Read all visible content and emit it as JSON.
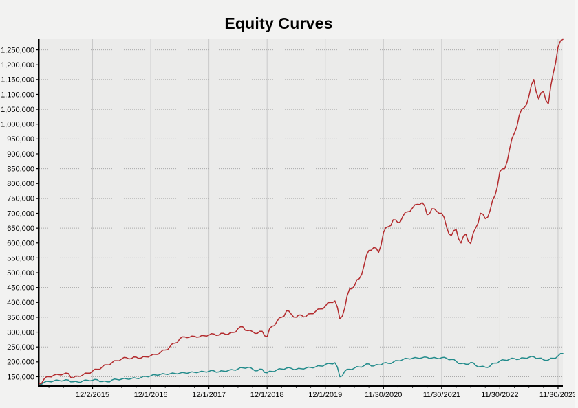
{
  "title": "Equity Curves",
  "colors": {
    "background": "#f2f2f1",
    "plot_background": "#ebebea",
    "vertical_gridline": "#c9c9c9",
    "horizontal_gridline": "#a9a9a9",
    "axis": "#000000",
    "tick_label": "#000000",
    "red_series": "#b32b2e",
    "teal_series": "#228b8b"
  },
  "chart_data": {
    "type": "line",
    "title": "Equity Curves",
    "grid": "on",
    "legend": "none",
    "x_axis": {
      "tick_labels": [
        "12/2/2015",
        "12/1/2016",
        "12/1/2017",
        "12/1/2018",
        "12/1/2019",
        "11/30/2020",
        "11/30/2021",
        "11/30/2022",
        "11/30/2023"
      ],
      "tick_indices": [
        11,
        23,
        35,
        47,
        59,
        71,
        83,
        95,
        107
      ],
      "minor_tick_every_points": 3,
      "points_span": 109
    },
    "y_axis": {
      "tick_min": 150000,
      "tick_max": 1250000,
      "tick_step": 50000,
      "minor_tick_step": 10000,
      "gridline_step": 100000,
      "value_at_plot_bottom": 121000,
      "value_at_plot_top": 1286000,
      "tick_label_format": "comma-separated"
    },
    "series": [
      {
        "name": "teal",
        "color": "#228b8b",
        "values": [
          125000,
          131000,
          134000,
          136000,
          138000,
          137000,
          139000,
          133000,
          132000,
          136000,
          138000,
          138000,
          140000,
          134000,
          133000,
          139000,
          141000,
          142000,
          143000,
          144000,
          145000,
          147000,
          151000,
          153000,
          156000,
          158000,
          159000,
          160000,
          161000,
          162000,
          163000,
          164000,
          165000,
          166000,
          167000,
          168000,
          170000,
          166000,
          169000,
          171000,
          173000,
          176000,
          180000,
          181000,
          176000,
          170000,
          175000,
          163000,
          168000,
          173000,
          176000,
          179000,
          178000,
          175000,
          177000,
          179000,
          181000,
          183000,
          186000,
          191000,
          194000,
          197000,
          150000,
          168000,
          175000,
          179000,
          183000,
          187000,
          193000,
          186000,
          190000,
          196000,
          195000,
          199000,
          204000,
          208000,
          211000,
          212000,
          213000,
          214000,
          215000,
          213000,
          212000,
          214000,
          212000,
          208000,
          202000,
          194000,
          192000,
          198000,
          188000,
          184000,
          182000,
          186000,
          196000,
          203000,
          206000,
          209000,
          211000,
          209000,
          213000,
          215000,
          217000,
          212000,
          207000,
          206000,
          212000,
          220000,
          228000
        ]
      },
      {
        "name": "red",
        "color": "#b32b2e",
        "values": [
          126000,
          142000,
          150000,
          155000,
          157000,
          159000,
          161000,
          146000,
          152000,
          156000,
          162000,
          169000,
          175000,
          183000,
          190000,
          197000,
          204000,
          210000,
          214000,
          211000,
          216000,
          213000,
          217000,
          221000,
          225000,
          232000,
          240000,
          252000,
          263000,
          278000,
          284000,
          283000,
          286000,
          284000,
          288000,
          290000,
          294000,
          290000,
          296000,
          293000,
          299000,
          312000,
          318000,
          305000,
          302000,
          296000,
          303000,
          285000,
          320000,
          335000,
          350000,
          372000,
          360000,
          350000,
          358000,
          352000,
          362000,
          370000,
          378000,
          387000,
          400000,
          405000,
          345000,
          380000,
          445000,
          455000,
          480000,
          525000,
          575000,
          585000,
          568000,
          635000,
          655000,
          678000,
          668000,
          690000,
          705000,
          718000,
          730000,
          736000,
          695000,
          715000,
          706000,
          700000,
          655000,
          625000,
          645000,
          600000,
          630000,
          598000,
          650000,
          700000,
          682000,
          710000,
          760000,
          840000,
          850000,
          915000,
          970000,
          1030000,
          1055000,
          1095000,
          1150000,
          1085000,
          1110000,
          1068000,
          1170000,
          1260000,
          1285000
        ]
      }
    ]
  }
}
